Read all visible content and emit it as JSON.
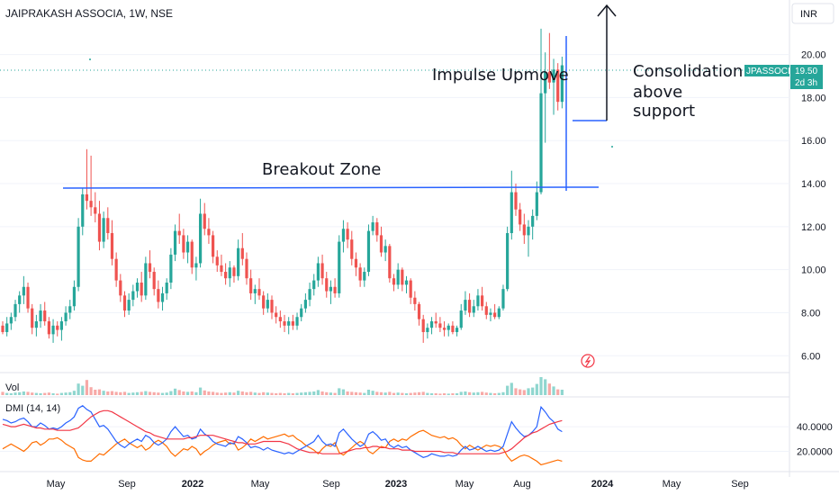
{
  "header": {
    "symbol_title": "JAIPRAKASH ASSOCIA, 1W, NSE",
    "currency": "INR"
  },
  "price_badge": {
    "ticker": "JPASSOCIAT",
    "price": "19.50",
    "countdown": "2d 3h",
    "color": "#26a69a"
  },
  "annotations": {
    "breakout_zone": "Breakout Zone",
    "impulse_upmove": "Impulse Upmove",
    "consolidation": [
      "Consolidation",
      "above",
      "support"
    ]
  },
  "indicators": {
    "volume_label": "Vol",
    "dmi_label": "DMI (14, 14)"
  },
  "colors": {
    "up": "#26a69a",
    "down": "#ef5350",
    "trendline": "#2962ff",
    "adx": "#f23645",
    "di_plus": "#2962ff",
    "di_minus": "#ff6d00"
  },
  "chart_data": [
    {
      "type": "candlestick",
      "title": "JAIPRAKASH ASSOCIA, 1W, NSE",
      "y_axis_ticks": [
        "6.00",
        "8.00",
        "10.00",
        "12.00",
        "14.00",
        "16.00",
        "18.00",
        "20.00"
      ],
      "ylim": [
        5.3,
        22.2
      ],
      "x_axis_ticks": [
        "May",
        "Sep",
        "2022",
        "May",
        "Sep",
        "2023",
        "May",
        "Aug",
        "2024",
        "May",
        "Sep"
      ],
      "last_price": 19.5,
      "horizontal_lines": [
        {
          "label": "Breakout Zone",
          "y": 13.9
        },
        {
          "label": "support",
          "y": 17.1
        }
      ],
      "candles": [
        [
          7.4,
          7.6,
          7.0,
          7.1
        ],
        [
          7.1,
          7.8,
          6.9,
          7.5
        ],
        [
          7.5,
          8.0,
          7.2,
          7.8
        ],
        [
          7.8,
          8.6,
          7.6,
          8.4
        ],
        [
          8.4,
          9.0,
          8.0,
          8.8
        ],
        [
          8.8,
          9.7,
          8.4,
          9.2
        ],
        [
          9.2,
          9.4,
          8.0,
          8.2
        ],
        [
          8.2,
          8.4,
          7.0,
          7.3
        ],
        [
          7.3,
          7.9,
          6.9,
          7.6
        ],
        [
          7.6,
          8.4,
          7.3,
          8.1
        ],
        [
          8.1,
          8.5,
          7.4,
          7.6
        ],
        [
          7.6,
          7.8,
          6.8,
          7.0
        ],
        [
          7.0,
          7.7,
          6.6,
          7.4
        ],
        [
          7.4,
          7.6,
          6.9,
          7.2
        ],
        [
          7.2,
          7.8,
          6.7,
          7.6
        ],
        [
          7.6,
          8.3,
          7.4,
          8.0
        ],
        [
          8.0,
          8.6,
          7.7,
          8.3
        ],
        [
          8.3,
          9.5,
          8.1,
          9.2
        ],
        [
          9.2,
          12.4,
          9.0,
          12.0
        ],
        [
          12.0,
          13.8,
          11.6,
          13.5
        ],
        [
          13.5,
          15.6,
          12.8,
          13.2
        ],
        [
          13.2,
          15.3,
          12.5,
          12.9
        ],
        [
          12.9,
          13.6,
          12.2,
          12.6
        ],
        [
          12.6,
          13.2,
          10.9,
          11.3
        ],
        [
          11.3,
          12.7,
          11.0,
          12.4
        ],
        [
          12.4,
          12.9,
          11.4,
          11.7
        ],
        [
          11.7,
          12.3,
          10.2,
          10.5
        ],
        [
          10.5,
          10.8,
          9.2,
          9.5
        ],
        [
          9.5,
          9.8,
          8.5,
          8.8
        ],
        [
          8.8,
          9.0,
          7.8,
          8.1
        ],
        [
          8.1,
          8.9,
          7.9,
          8.6
        ],
        [
          8.6,
          9.3,
          8.3,
          9.0
        ],
        [
          9.0,
          9.6,
          8.7,
          9.4
        ],
        [
          9.4,
          9.9,
          8.5,
          8.8
        ],
        [
          8.8,
          10.6,
          8.6,
          10.3
        ],
        [
          10.3,
          10.9,
          9.6,
          9.9
        ],
        [
          9.9,
          10.1,
          8.8,
          9.1
        ],
        [
          9.1,
          9.5,
          8.2,
          8.5
        ],
        [
          8.5,
          9.2,
          8.1,
          8.9
        ],
        [
          8.9,
          9.6,
          8.6,
          9.4
        ],
        [
          9.4,
          11.0,
          9.1,
          10.7
        ],
        [
          10.7,
          12.1,
          10.4,
          11.8
        ],
        [
          11.8,
          12.6,
          11.2,
          11.6
        ],
        [
          11.6,
          11.9,
          10.5,
          10.8
        ],
        [
          10.8,
          11.6,
          10.3,
          11.3
        ],
        [
          11.3,
          11.4,
          9.8,
          10.1
        ],
        [
          10.1,
          10.6,
          9.5,
          10.3
        ],
        [
          10.3,
          13.3,
          10.1,
          12.6
        ],
        [
          12.6,
          13.1,
          11.6,
          11.9
        ],
        [
          11.9,
          12.4,
          11.2,
          11.6
        ],
        [
          11.6,
          11.8,
          10.3,
          10.6
        ],
        [
          10.6,
          10.9,
          9.9,
          10.2
        ],
        [
          10.2,
          10.7,
          9.7,
          9.9
        ],
        [
          9.9,
          10.3,
          9.3,
          9.6
        ],
        [
          9.6,
          10.4,
          9.2,
          10.1
        ],
        [
          10.1,
          10.2,
          9.4,
          9.7
        ],
        [
          9.7,
          11.4,
          9.5,
          11.0
        ],
        [
          11.0,
          11.7,
          10.2,
          10.5
        ],
        [
          10.5,
          10.8,
          9.3,
          9.6
        ],
        [
          9.6,
          10.0,
          8.6,
          8.9
        ],
        [
          8.9,
          9.3,
          8.4,
          9.1
        ],
        [
          9.1,
          9.6,
          8.6,
          8.8
        ],
        [
          8.8,
          9.0,
          7.9,
          8.2
        ],
        [
          8.2,
          8.9,
          8.0,
          8.6
        ],
        [
          8.6,
          8.8,
          7.7,
          8.0
        ],
        [
          8.0,
          8.3,
          7.5,
          7.8
        ],
        [
          7.8,
          8.1,
          7.3,
          7.6
        ],
        [
          7.6,
          7.9,
          7.1,
          7.4
        ],
        [
          7.4,
          7.8,
          7.0,
          7.6
        ],
        [
          7.6,
          7.9,
          7.2,
          7.4
        ],
        [
          7.4,
          8.0,
          7.2,
          7.8
        ],
        [
          7.8,
          8.4,
          7.6,
          8.2
        ],
        [
          8.2,
          8.9,
          8.0,
          8.6
        ],
        [
          8.6,
          9.4,
          8.3,
          9.1
        ],
        [
          9.1,
          9.8,
          8.8,
          9.5
        ],
        [
          9.5,
          10.6,
          9.2,
          10.3
        ],
        [
          10.3,
          10.7,
          9.3,
          9.6
        ],
        [
          9.6,
          9.9,
          8.7,
          9.0
        ],
        [
          9.0,
          9.5,
          8.4,
          9.2
        ],
        [
          9.2,
          9.6,
          8.7,
          8.9
        ],
        [
          8.9,
          11.6,
          8.7,
          11.3
        ],
        [
          11.3,
          12.3,
          10.8,
          11.9
        ],
        [
          11.9,
          12.2,
          11.0,
          11.4
        ],
        [
          11.4,
          11.8,
          10.2,
          10.5
        ],
        [
          10.5,
          10.8,
          9.7,
          10.1
        ],
        [
          10.1,
          10.3,
          9.2,
          9.5
        ],
        [
          9.5,
          10.1,
          9.2,
          9.9
        ],
        [
          9.9,
          12.1,
          9.7,
          11.8
        ],
        [
          11.8,
          12.5,
          11.6,
          12.2
        ],
        [
          12.2,
          12.4,
          11.3,
          11.6
        ],
        [
          11.6,
          12.0,
          10.6,
          10.8
        ],
        [
          10.8,
          11.4,
          10.4,
          11.1
        ],
        [
          11.1,
          11.2,
          9.4,
          9.6
        ],
        [
          9.6,
          9.8,
          9.0,
          9.3
        ],
        [
          9.3,
          10.3,
          9.1,
          10.0
        ],
        [
          10.0,
          10.1,
          9.0,
          9.3
        ],
        [
          9.3,
          9.7,
          8.9,
          9.5
        ],
        [
          9.5,
          9.6,
          8.4,
          8.7
        ],
        [
          8.7,
          9.0,
          8.1,
          8.4
        ],
        [
          8.4,
          8.5,
          7.4,
          7.7
        ],
        [
          7.7,
          7.9,
          6.6,
          7.1
        ],
        [
          7.1,
          7.5,
          6.8,
          7.3
        ],
        [
          7.3,
          7.8,
          7.0,
          7.6
        ],
        [
          7.6,
          8.0,
          7.3,
          7.5
        ],
        [
          7.5,
          7.8,
          7.1,
          7.3
        ],
        [
          7.3,
          7.6,
          6.9,
          7.2
        ],
        [
          7.2,
          7.5,
          6.9,
          7.4
        ],
        [
          7.4,
          7.6,
          7.0,
          7.1
        ],
        [
          7.1,
          7.4,
          6.9,
          7.3
        ],
        [
          7.3,
          8.4,
          7.2,
          8.1
        ],
        [
          8.1,
          9.0,
          7.9,
          8.6
        ],
        [
          8.6,
          8.9,
          7.8,
          8.0
        ],
        [
          8.0,
          8.6,
          7.8,
          8.3
        ],
        [
          8.3,
          9.1,
          8.1,
          8.8
        ],
        [
          8.8,
          9.2,
          8.1,
          8.3
        ],
        [
          8.3,
          8.5,
          7.7,
          7.9
        ],
        [
          7.9,
          8.2,
          7.6,
          8.0
        ],
        [
          8.0,
          8.4,
          7.7,
          7.8
        ],
        [
          7.8,
          8.3,
          7.7,
          8.2
        ],
        [
          8.2,
          9.3,
          8.1,
          9.1
        ],
        [
          9.1,
          12.0,
          9.0,
          11.7
        ],
        [
          11.7,
          14.6,
          11.4,
          13.6
        ],
        [
          13.6,
          14.0,
          12.5,
          12.8
        ],
        [
          12.8,
          13.1,
          11.8,
          12.1
        ],
        [
          12.1,
          12.6,
          11.2,
          11.6
        ],
        [
          11.6,
          12.3,
          10.6,
          12.0
        ],
        [
          12.0,
          12.8,
          11.4,
          12.5
        ],
        [
          12.5,
          14.1,
          12.3,
          13.6
        ],
        [
          13.6,
          21.2,
          13.5,
          18.2
        ],
        [
          18.2,
          20.1,
          15.9,
          19.2
        ],
        [
          19.2,
          21.0,
          18.4,
          18.7
        ],
        [
          18.7,
          19.8,
          17.2,
          19.3
        ],
        [
          19.3,
          19.6,
          17.4,
          17.8
        ],
        [
          17.8,
          19.9,
          17.5,
          19.5
        ]
      ],
      "volume": [
        0.9,
        0.6,
        0.5,
        0.7,
        0.8,
        1.0,
        0.9,
        0.7,
        0.6,
        0.5,
        0.6,
        0.7,
        0.5,
        0.4,
        0.6,
        0.7,
        0.8,
        1.2,
        3.2,
        2.6,
        4.2,
        2.2,
        1.5,
        1.6,
        1.2,
        1.0,
        1.1,
        0.9,
        0.8,
        0.9,
        0.6,
        0.7,
        0.8,
        0.9,
        1.1,
        0.9,
        0.8,
        0.7,
        0.6,
        0.7,
        1.1,
        1.8,
        1.4,
        1.0,
        0.9,
        1.0,
        0.8,
        2.1,
        1.3,
        1.0,
        0.9,
        0.7,
        0.6,
        0.7,
        0.8,
        0.7,
        1.2,
        1.0,
        0.8,
        0.9,
        0.7,
        0.6,
        0.8,
        0.7,
        0.6,
        0.5,
        0.6,
        0.5,
        0.6,
        0.5,
        0.6,
        0.7,
        0.8,
        0.9,
        1.0,
        1.4,
        1.0,
        0.8,
        0.7,
        0.6,
        1.9,
        1.6,
        1.0,
        0.9,
        0.8,
        0.7,
        0.6,
        1.5,
        1.2,
        0.9,
        0.8,
        0.7,
        0.9,
        0.6,
        0.7,
        0.6,
        0.5,
        0.6,
        0.7,
        0.8,
        0.9,
        0.6,
        0.5,
        0.5,
        0.4,
        0.5,
        0.4,
        0.5,
        0.5,
        0.9,
        1.0,
        0.8,
        0.7,
        0.8,
        0.9,
        0.7,
        0.6,
        0.5,
        0.6,
        0.8,
        2.6,
        3.4,
        1.9,
        1.6,
        1.4,
        1.9,
        2.1,
        3.1,
        5.0,
        4.4,
        3.2,
        2.4,
        1.6,
        1.5
      ],
      "dmi": {
        "ylim": [
          5,
          62
        ],
        "ticks": [
          "20.0000",
          "40.0000"
        ],
        "adx": [
          42,
          41,
          40,
          40,
          41,
          42,
          41,
          40,
          39,
          39,
          38,
          38,
          38,
          37,
          37,
          37,
          37,
          38,
          39,
          42,
          45,
          48,
          50,
          52,
          53,
          53,
          52,
          50,
          48,
          46,
          44,
          42,
          40,
          38,
          36,
          35,
          33,
          32,
          31,
          30,
          30,
          30,
          30,
          30,
          31,
          31,
          32,
          33,
          33,
          33,
          33,
          32,
          31,
          30,
          29,
          28,
          27,
          27,
          26,
          26,
          26,
          27,
          28,
          28,
          28,
          28,
          28,
          27,
          26,
          24,
          22,
          21,
          20,
          19,
          19,
          19,
          18,
          18,
          18,
          18,
          18,
          19,
          20,
          21,
          22,
          22,
          23,
          23,
          24,
          24,
          23,
          23,
          22,
          22,
          22,
          21,
          21,
          21,
          20,
          20,
          20,
          20,
          20,
          20,
          20,
          19,
          19,
          19,
          18,
          18,
          18,
          18,
          18,
          18,
          18,
          18,
          18,
          18,
          18,
          19,
          20,
          22,
          25,
          28,
          31,
          33,
          35,
          36,
          38,
          40,
          42,
          43,
          44,
          45
        ],
        "di_plus": [
          46,
          45,
          43,
          44,
          46,
          47,
          44,
          40,
          40,
          43,
          41,
          38,
          39,
          38,
          40,
          43,
          45,
          48,
          55,
          57,
          54,
          52,
          46,
          40,
          41,
          38,
          33,
          28,
          25,
          23,
          26,
          28,
          30,
          28,
          33,
          31,
          27,
          25,
          27,
          30,
          36,
          40,
          36,
          32,
          33,
          30,
          31,
          38,
          34,
          32,
          28,
          26,
          25,
          24,
          27,
          26,
          32,
          30,
          27,
          23,
          24,
          23,
          21,
          23,
          21,
          20,
          19,
          18,
          19,
          18,
          20,
          22,
          24,
          26,
          28,
          33,
          28,
          25,
          26,
          24,
          35,
          38,
          34,
          30,
          27,
          24,
          26,
          34,
          36,
          33,
          29,
          30,
          25,
          23,
          25,
          23,
          24,
          21,
          19,
          17,
          15,
          16,
          18,
          17,
          16,
          16,
          17,
          16,
          17,
          21,
          24,
          21,
          22,
          24,
          22,
          20,
          21,
          20,
          21,
          24,
          34,
          44,
          39,
          35,
          32,
          33,
          36,
          40,
          56,
          52,
          47,
          44,
          38,
          36
        ],
        "di_minus": [
          22,
          24,
          26,
          24,
          22,
          20,
          23,
          27,
          28,
          25,
          27,
          30,
          30,
          31,
          29,
          26,
          24,
          22,
          15,
          13,
          12,
          12,
          15,
          18,
          17,
          20,
          23,
          26,
          28,
          30,
          27,
          25,
          23,
          25,
          21,
          23,
          27,
          29,
          27,
          24,
          19,
          16,
          19,
          22,
          21,
          24,
          22,
          17,
          20,
          22,
          25,
          27,
          28,
          29,
          26,
          27,
          21,
          23,
          26,
          30,
          28,
          30,
          32,
          30,
          31,
          32,
          33,
          34,
          32,
          33,
          30,
          28,
          25,
          23,
          21,
          18,
          22,
          25,
          24,
          27,
          19,
          17,
          20,
          23,
          26,
          28,
          26,
          20,
          18,
          21,
          24,
          23,
          28,
          30,
          28,
          30,
          29,
          32,
          34,
          36,
          37,
          35,
          33,
          32,
          31,
          32,
          30,
          31,
          29,
          25,
          22,
          25,
          23,
          21,
          23,
          25,
          24,
          25,
          24,
          22,
          16,
          12,
          14,
          16,
          17,
          16,
          14,
          12,
          9,
          10,
          11,
          12,
          13,
          12
        ]
      }
    }
  ]
}
